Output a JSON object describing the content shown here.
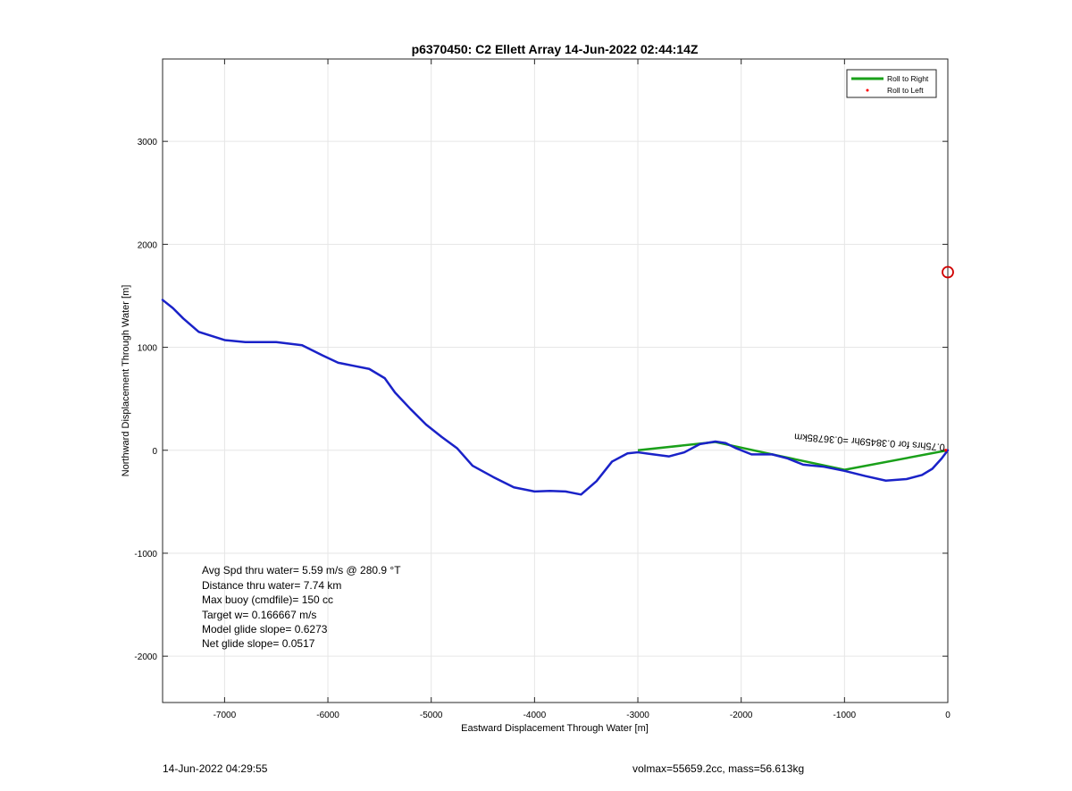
{
  "chart_data": {
    "type": "line",
    "title": "p6370450: C2 Ellett Array 14-Jun-2022 02:44:14Z",
    "xlabel": "Eastward Displacement Through Water [m]",
    "ylabel": "Northward Displacement Through Water [m]",
    "xlim": [
      -7600,
      0
    ],
    "ylim": [
      -2450,
      3800
    ],
    "xticks": [
      -7000,
      -6000,
      -5000,
      -4000,
      -3000,
      -2000,
      -1000,
      0
    ],
    "yticks": [
      -2000,
      -1000,
      0,
      1000,
      2000,
      3000
    ],
    "grid": true,
    "legend": {
      "position": "top-right",
      "entries": [
        "Roll to Right",
        "Roll to Left"
      ]
    },
    "series": [
      {
        "name": "Roll to Right",
        "color": "#1aa01a",
        "x": [
          0,
          -1000,
          -1700,
          -2250,
          -3000
        ],
        "y": [
          0,
          -190,
          -40,
          80,
          0
        ]
      },
      {
        "color": "#1a22c8",
        "x": [
          0,
          -60,
          -150,
          -250,
          -400,
          -600,
          -800,
          -1000,
          -1200,
          -1400,
          -1550,
          -1700,
          -1900,
          -2050,
          -2150,
          -2250,
          -2400,
          -2550,
          -2700,
          -2850,
          -3000,
          -3100,
          -3250,
          -3400,
          -3550,
          -3700,
          -3850,
          -4000,
          -4200,
          -4400,
          -4600,
          -4750,
          -4900,
          -5050,
          -5200,
          -5350,
          -5450,
          -5600,
          -5750,
          -5900,
          -6050,
          -6250,
          -6500,
          -6800,
          -7000,
          -7250,
          -7400,
          -7500,
          -7600
        ],
        "y": [
          0,
          -80,
          -180,
          -240,
          -280,
          -295,
          -250,
          -200,
          -160,
          -140,
          -80,
          -40,
          -40,
          20,
          70,
          85,
          60,
          -20,
          -60,
          -40,
          -20,
          -30,
          -110,
          -300,
          -430,
          -400,
          -395,
          -400,
          -360,
          -260,
          -150,
          20,
          130,
          250,
          400,
          560,
          700,
          790,
          820,
          850,
          920,
          1020,
          1050,
          1050,
          1070,
          1150,
          1280,
          1380,
          1460
        ]
      },
      {
        "name": "Roll to Left",
        "color": "#ff0000",
        "x": [
          -20
        ],
        "y": [
          0
        ]
      }
    ],
    "marker": {
      "shape": "circle",
      "color": "#d00000",
      "x": 0,
      "y": 1730
    },
    "annotations": [
      "0.75hrs for 0.38459hr =0.36785km",
      "Avg Spd thru water=  5.59 m/s @ 280.9 °T",
      "Distance thru water=  7.74 km",
      "Max buoy (cmdfile)= 150 cc",
      "Target w= 0.166667 m/s",
      "Model glide slope= 0.6273",
      "Net glide slope= 0.0517"
    ]
  },
  "footer": {
    "timestamp": "14-Jun-2022 04:29:55",
    "summary": "volmax=55659.2cc, mass=56.613kg"
  }
}
